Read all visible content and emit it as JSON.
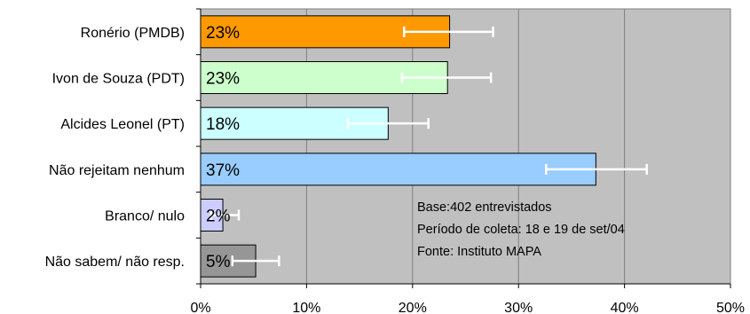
{
  "chart_data": {
    "type": "bar",
    "orientation": "horizontal",
    "title": "",
    "xlabel": "",
    "ylabel": "",
    "categories": [
      "Ronério (PMDB)",
      "Ivon de Souza (PDT)",
      "Alcides Leonel (PT)",
      "Não rejeitam nenhum",
      "Branco/ nulo",
      "Não sabem/ não resp."
    ],
    "values": [
      23.5,
      23.3,
      17.7,
      37.3,
      2.1,
      5.2
    ],
    "value_labels": [
      "23%",
      "23%",
      "18%",
      "37%",
      "2%",
      "5%"
    ],
    "error_bars": [
      {
        "low": 19.2,
        "high": 27.6
      },
      {
        "low": 19.0,
        "high": 27.4
      },
      {
        "low": 13.9,
        "high": 21.5
      },
      {
        "low": 32.6,
        "high": 42.1
      },
      {
        "low": 1.0,
        "high": 3.6
      },
      {
        "low": 3.0,
        "high": 7.4
      }
    ],
    "bar_colors": [
      "#FF9900",
      "#CCFFCC",
      "#CCFFFF",
      "#99CCFF",
      "#CCCCFF",
      "#969696"
    ],
    "xlim": [
      0,
      50
    ],
    "xticks": [
      0,
      10,
      20,
      30,
      40,
      50
    ],
    "xtick_labels": [
      "0%",
      "10%",
      "20%",
      "30%",
      "40%",
      "50%"
    ],
    "grid": true,
    "plot_background": "#C0C0C0",
    "error_bar_color": "#FFFFFF",
    "annotation": [
      "Base:402 entrevistados",
      "Período de coleta: 18 e 19 de set/04",
      "Fonte: Instituto MAPA"
    ]
  }
}
